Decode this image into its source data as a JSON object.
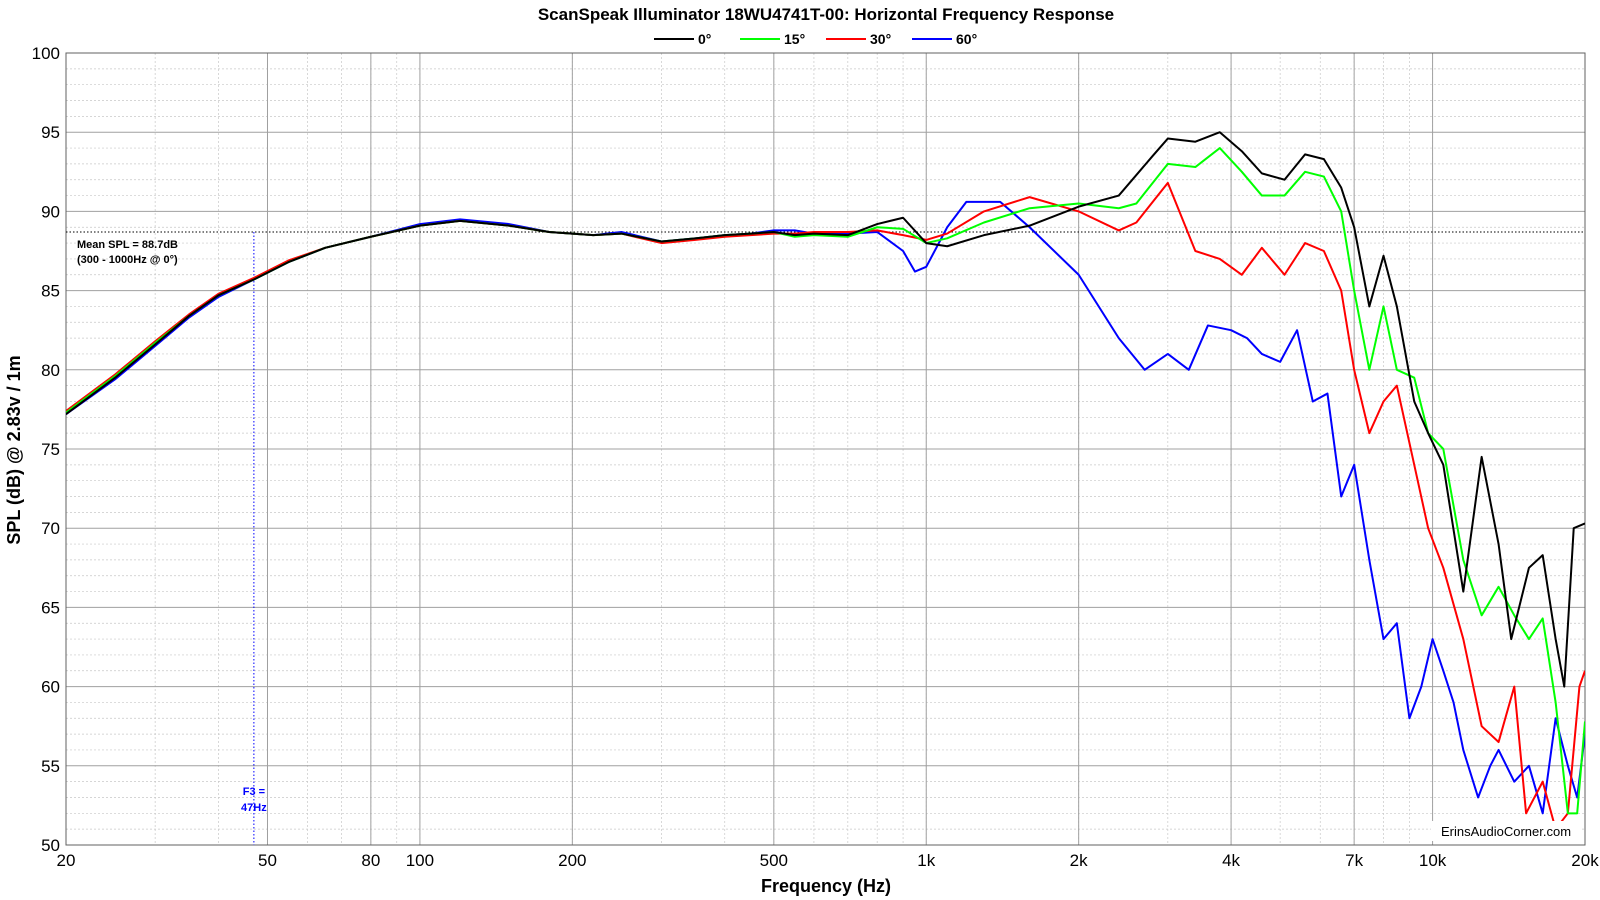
{
  "chart_data": {
    "type": "line",
    "title": "ScanSpeak Illuminator 18WU4741T-00: Horizontal Frequency Response",
    "xlabel": "Frequency (Hz)",
    "ylabel": "SPL (dB) @ 2.83v / 1m",
    "xscale": "log",
    "xlim": [
      20,
      20000
    ],
    "ylim": [
      50,
      100
    ],
    "grid": true,
    "legend_position": "top-center",
    "x_ticks": [
      {
        "value": 20,
        "label": "20"
      },
      {
        "value": 50,
        "label": "50"
      },
      {
        "value": 80,
        "label": "80"
      },
      {
        "value": 100,
        "label": "100"
      },
      {
        "value": 200,
        "label": "200"
      },
      {
        "value": 500,
        "label": "500"
      },
      {
        "value": 1000,
        "label": "1k"
      },
      {
        "value": 2000,
        "label": "2k"
      },
      {
        "value": 4000,
        "label": "4k"
      },
      {
        "value": 7000,
        "label": "7k"
      },
      {
        "value": 10000,
        "label": "10k"
      },
      {
        "value": 20000,
        "label": "20k"
      }
    ],
    "y_ticks": [
      50,
      55,
      60,
      65,
      70,
      75,
      80,
      85,
      90,
      95,
      100
    ],
    "series": [
      {
        "name": "0°",
        "color": "#000000",
        "points": [
          [
            20,
            77.2
          ],
          [
            25,
            79.5
          ],
          [
            30,
            81.6
          ],
          [
            35,
            83.4
          ],
          [
            40,
            84.7
          ],
          [
            47,
            85.7
          ],
          [
            55,
            86.8
          ],
          [
            65,
            87.7
          ],
          [
            80,
            88.4
          ],
          [
            100,
            89.1
          ],
          [
            120,
            89.4
          ],
          [
            150,
            89.1
          ],
          [
            180,
            88.7
          ],
          [
            220,
            88.5
          ],
          [
            250,
            88.6
          ],
          [
            300,
            88.1
          ],
          [
            350,
            88.3
          ],
          [
            400,
            88.5
          ],
          [
            450,
            88.6
          ],
          [
            500,
            88.7
          ],
          [
            550,
            88.5
          ],
          [
            600,
            88.6
          ],
          [
            700,
            88.5
          ],
          [
            800,
            89.2
          ],
          [
            900,
            89.6
          ],
          [
            1000,
            88.0
          ],
          [
            1100,
            87.8
          ],
          [
            1300,
            88.5
          ],
          [
            1600,
            89.1
          ],
          [
            2000,
            90.3
          ],
          [
            2400,
            91.0
          ],
          [
            2800,
            93.5
          ],
          [
            3000,
            94.6
          ],
          [
            3400,
            94.4
          ],
          [
            3800,
            95.0
          ],
          [
            4200,
            93.8
          ],
          [
            4600,
            92.4
          ],
          [
            5100,
            92.0
          ],
          [
            5600,
            93.6
          ],
          [
            6100,
            93.3
          ],
          [
            6600,
            91.5
          ],
          [
            7000,
            89.0
          ],
          [
            7500,
            84.0
          ],
          [
            8000,
            87.2
          ],
          [
            8500,
            84.0
          ],
          [
            9200,
            78.0
          ],
          [
            9800,
            76.0
          ],
          [
            10500,
            74.0
          ],
          [
            11500,
            66.0
          ],
          [
            12500,
            74.5
          ],
          [
            13500,
            69.0
          ],
          [
            14300,
            63.0
          ],
          [
            15500,
            67.5
          ],
          [
            16500,
            68.3
          ],
          [
            17500,
            63.0
          ],
          [
            18200,
            60.0
          ],
          [
            19000,
            70.0
          ],
          [
            20000,
            70.3
          ]
        ]
      },
      {
        "name": "15°",
        "color": "#00ff00",
        "points": [
          [
            20,
            77.3
          ],
          [
            25,
            79.6
          ],
          [
            30,
            81.7
          ],
          [
            35,
            83.4
          ],
          [
            40,
            84.7
          ],
          [
            47,
            85.7
          ],
          [
            55,
            86.8
          ],
          [
            65,
            87.7
          ],
          [
            80,
            88.4
          ],
          [
            100,
            89.1
          ],
          [
            120,
            89.4
          ],
          [
            150,
            89.1
          ],
          [
            180,
            88.7
          ],
          [
            220,
            88.5
          ],
          [
            250,
            88.6
          ],
          [
            300,
            88.1
          ],
          [
            350,
            88.3
          ],
          [
            400,
            88.5
          ],
          [
            450,
            88.6
          ],
          [
            500,
            88.7
          ],
          [
            550,
            88.4
          ],
          [
            600,
            88.5
          ],
          [
            700,
            88.4
          ],
          [
            800,
            89.0
          ],
          [
            900,
            88.9
          ],
          [
            1000,
            88.0
          ],
          [
            1100,
            88.3
          ],
          [
            1300,
            89.3
          ],
          [
            1600,
            90.2
          ],
          [
            2000,
            90.5
          ],
          [
            2400,
            90.2
          ],
          [
            2600,
            90.5
          ],
          [
            3000,
            93.0
          ],
          [
            3400,
            92.8
          ],
          [
            3800,
            94.0
          ],
          [
            4200,
            92.5
          ],
          [
            4600,
            91.0
          ],
          [
            5100,
            91.0
          ],
          [
            5600,
            92.5
          ],
          [
            6100,
            92.2
          ],
          [
            6600,
            90.0
          ],
          [
            7000,
            85.0
          ],
          [
            7500,
            80.0
          ],
          [
            8000,
            84.0
          ],
          [
            8500,
            80.0
          ],
          [
            9200,
            79.5
          ],
          [
            9800,
            76.0
          ],
          [
            10500,
            75.0
          ],
          [
            11500,
            68.0
          ],
          [
            12500,
            64.5
          ],
          [
            13500,
            66.3
          ],
          [
            14500,
            64.5
          ],
          [
            15500,
            63.0
          ],
          [
            16500,
            64.3
          ],
          [
            17500,
            59.0
          ],
          [
            18500,
            52.0
          ],
          [
            19300,
            52.0
          ],
          [
            20000,
            57.8
          ]
        ]
      },
      {
        "name": "30°",
        "color": "#ff0000",
        "points": [
          [
            20,
            77.4
          ],
          [
            25,
            79.7
          ],
          [
            30,
            81.8
          ],
          [
            35,
            83.5
          ],
          [
            40,
            84.8
          ],
          [
            47,
            85.8
          ],
          [
            55,
            86.9
          ],
          [
            65,
            87.7
          ],
          [
            80,
            88.4
          ],
          [
            100,
            89.1
          ],
          [
            120,
            89.4
          ],
          [
            150,
            89.1
          ],
          [
            180,
            88.7
          ],
          [
            220,
            88.5
          ],
          [
            250,
            88.6
          ],
          [
            300,
            88.0
          ],
          [
            350,
            88.2
          ],
          [
            400,
            88.4
          ],
          [
            450,
            88.5
          ],
          [
            500,
            88.6
          ],
          [
            550,
            88.6
          ],
          [
            600,
            88.7
          ],
          [
            700,
            88.7
          ],
          [
            800,
            88.8
          ],
          [
            900,
            88.5
          ],
          [
            1000,
            88.2
          ],
          [
            1100,
            88.6
          ],
          [
            1300,
            90.0
          ],
          [
            1600,
            90.9
          ],
          [
            2000,
            90.0
          ],
          [
            2400,
            88.8
          ],
          [
            2600,
            89.3
          ],
          [
            3000,
            91.8
          ],
          [
            3400,
            87.5
          ],
          [
            3800,
            87.0
          ],
          [
            4200,
            86.0
          ],
          [
            4600,
            87.7
          ],
          [
            5100,
            86.0
          ],
          [
            5600,
            88.0
          ],
          [
            6100,
            87.5
          ],
          [
            6600,
            85.0
          ],
          [
            7000,
            80.0
          ],
          [
            7500,
            76.0
          ],
          [
            8000,
            78.0
          ],
          [
            8500,
            79.0
          ],
          [
            9200,
            74.0
          ],
          [
            9800,
            70.0
          ],
          [
            10500,
            67.5
          ],
          [
            11500,
            63.0
          ],
          [
            12500,
            57.5
          ],
          [
            13500,
            56.5
          ],
          [
            14500,
            60.0
          ],
          [
            15300,
            52.0
          ],
          [
            16500,
            54.0
          ],
          [
            17500,
            51.0
          ],
          [
            18500,
            52.0
          ],
          [
            19500,
            60.0
          ],
          [
            20000,
            61.0
          ]
        ]
      },
      {
        "name": "60°",
        "color": "#0000ff",
        "points": [
          [
            20,
            77.2
          ],
          [
            25,
            79.4
          ],
          [
            30,
            81.5
          ],
          [
            35,
            83.3
          ],
          [
            40,
            84.6
          ],
          [
            47,
            85.7
          ],
          [
            55,
            86.8
          ],
          [
            65,
            87.7
          ],
          [
            80,
            88.4
          ],
          [
            100,
            89.2
          ],
          [
            120,
            89.5
          ],
          [
            150,
            89.2
          ],
          [
            180,
            88.7
          ],
          [
            220,
            88.5
          ],
          [
            250,
            88.7
          ],
          [
            300,
            88.1
          ],
          [
            350,
            88.3
          ],
          [
            400,
            88.5
          ],
          [
            450,
            88.6
          ],
          [
            500,
            88.8
          ],
          [
            550,
            88.8
          ],
          [
            600,
            88.6
          ],
          [
            700,
            88.6
          ],
          [
            800,
            88.7
          ],
          [
            900,
            87.5
          ],
          [
            950,
            86.2
          ],
          [
            1000,
            86.5
          ],
          [
            1100,
            89.0
          ],
          [
            1200,
            90.6
          ],
          [
            1400,
            90.6
          ],
          [
            1600,
            89.0
          ],
          [
            2000,
            86.0
          ],
          [
            2400,
            82.0
          ],
          [
            2700,
            80.0
          ],
          [
            3000,
            81.0
          ],
          [
            3300,
            80.0
          ],
          [
            3600,
            82.8
          ],
          [
            4000,
            82.5
          ],
          [
            4300,
            82.0
          ],
          [
            4600,
            81.0
          ],
          [
            5000,
            80.5
          ],
          [
            5400,
            82.5
          ],
          [
            5800,
            78.0
          ],
          [
            6200,
            78.5
          ],
          [
            6600,
            72.0
          ],
          [
            7000,
            74.0
          ],
          [
            7500,
            68.0
          ],
          [
            8000,
            63.0
          ],
          [
            8500,
            64.0
          ],
          [
            9000,
            58.0
          ],
          [
            9500,
            60.0
          ],
          [
            10000,
            63.0
          ],
          [
            10500,
            61.0
          ],
          [
            11000,
            59.0
          ],
          [
            11500,
            56.0
          ],
          [
            12300,
            53.0
          ],
          [
            13000,
            55.0
          ],
          [
            13500,
            56.0
          ],
          [
            14500,
            54.0
          ],
          [
            15500,
            55.0
          ],
          [
            16500,
            52.0
          ],
          [
            17500,
            58.0
          ],
          [
            18500,
            55.0
          ],
          [
            19300,
            53.0
          ],
          [
            20000,
            57.0
          ]
        ]
      }
    ],
    "annotations": {
      "mean_spl": {
        "value": 88.7,
        "line1": "Mean SPL = 88.7dB",
        "line2": "(300 - 1000Hz @ 0°)"
      },
      "f3": {
        "value": 47,
        "line1": "F3 =",
        "line2": "47Hz"
      }
    },
    "watermark": "ErinsAudioCorner.com"
  }
}
